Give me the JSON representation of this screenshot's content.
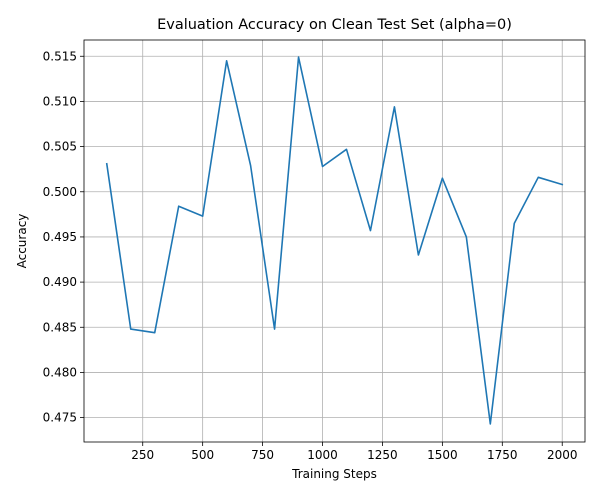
{
  "chart_data": {
    "type": "line",
    "title": "Evaluation Accuracy on Clean Test Set (alpha=0)",
    "xlabel": "Training Steps",
    "ylabel": "Accuracy",
    "xlim": [
      5,
      2095
    ],
    "ylim": [
      0.4723,
      0.5168
    ],
    "grid": true,
    "x_ticks": [
      250,
      500,
      750,
      1000,
      1250,
      1500,
      1750,
      2000
    ],
    "x_tick_labels": [
      "250",
      "500",
      "750",
      "1000",
      "1250",
      "1500",
      "1750",
      "2000"
    ],
    "y_ticks": [
      0.475,
      0.48,
      0.485,
      0.49,
      0.495,
      0.5,
      0.505,
      0.51,
      0.515
    ],
    "y_tick_labels": [
      "0.475",
      "0.480",
      "0.485",
      "0.490",
      "0.495",
      "0.500",
      "0.505",
      "0.510",
      "0.515"
    ],
    "series": [
      {
        "color": "#1f77b4",
        "x": [
          100,
          200,
          300,
          400,
          500,
          600,
          700,
          800,
          900,
          1000,
          1100,
          1200,
          1300,
          1400,
          1500,
          1600,
          1700,
          1800,
          1900,
          2000
        ],
        "y": [
          0.5031,
          0.4848,
          0.4844,
          0.4984,
          0.4973,
          0.5145,
          0.5029,
          0.4848,
          0.5149,
          0.5028,
          0.5047,
          0.4957,
          0.5094,
          0.493,
          0.5015,
          0.495,
          0.4743,
          0.4965,
          0.5016,
          0.5008
        ]
      }
    ]
  }
}
